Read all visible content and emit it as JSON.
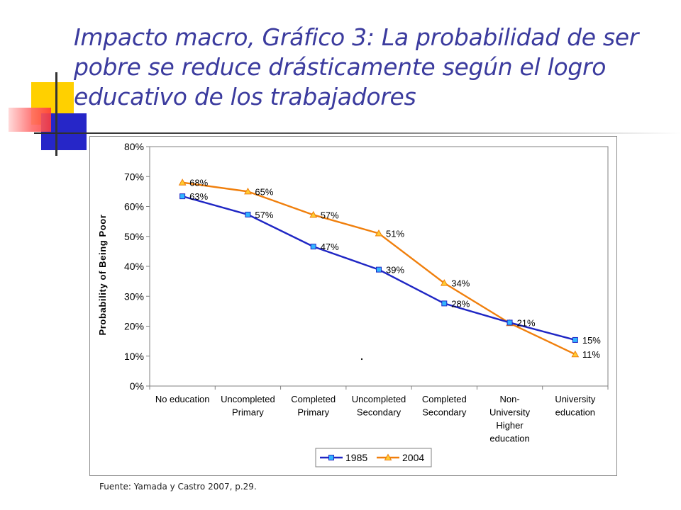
{
  "slide": {
    "title": "Impacto macro, Gráfico 3: La probabilidad de ser pobre se reduce drásticamente según el logro educativo de los trabajadores",
    "footer": "Fuente: Yamada y Castro 2007, p.29."
  },
  "colors": {
    "title": "#3b3b9e",
    "series_1985": "#1f26c4",
    "series_2004": "#f07f0c",
    "marker_1985_fill": "#33b5ff",
    "marker_2004_fill": "#ffcc33"
  },
  "chart_data": {
    "type": "line",
    "title": "",
    "xlabel": "",
    "ylabel": "Probability of Being Poor",
    "ylim": [
      0,
      80
    ],
    "yticks": [
      "0%",
      "10%",
      "20%",
      "30%",
      "40%",
      "50%",
      "60%",
      "70%",
      "80%"
    ],
    "grid": false,
    "legend_position": "bottom",
    "categories": [
      [
        "No education"
      ],
      [
        "Uncompleted",
        "Primary"
      ],
      [
        "Completed",
        "Primary"
      ],
      [
        "Uncompleted",
        "Secondary"
      ],
      [
        "Completed",
        "Secondary"
      ],
      [
        "Non-",
        "University",
        "Higher",
        "education"
      ],
      [
        "University",
        "education"
      ]
    ],
    "series": [
      {
        "name": "1985",
        "values": [
          63.4,
          57.3,
          46.6,
          38.9,
          27.6,
          21.2,
          15.4
        ],
        "labels": [
          "63%",
          "57%",
          "47%",
          "39%",
          "28%",
          "21%",
          "15%"
        ],
        "marker": "square"
      },
      {
        "name": "2004",
        "values": [
          68.0,
          65.0,
          57.2,
          51.0,
          34.4,
          21.0,
          10.6
        ],
        "labels": [
          "68%",
          "65%",
          "57%",
          "51%",
          "34%",
          "",
          "11%"
        ],
        "marker": "triangle"
      }
    ]
  }
}
